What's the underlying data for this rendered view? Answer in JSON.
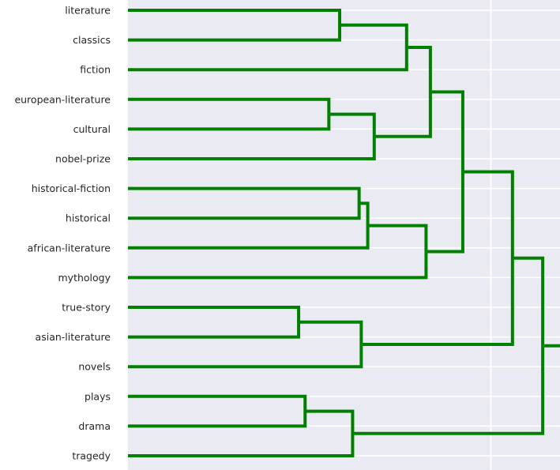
{
  "chart_data": {
    "type": "dendrogram",
    "orientation": "right",
    "link_color": "#008000",
    "background_color": "#EAEAF2",
    "grid_color": "#FFFFFF",
    "grid": true,
    "leaves": [
      "literature",
      "classics",
      "fiction",
      "european-literature",
      "cultural",
      "nobel-prize",
      "historical-fiction",
      "historical",
      "african-literature",
      "mythology",
      "true-story",
      "asian-literature",
      "novels",
      "plays",
      "drama",
      "tragedy"
    ],
    "xlim": [
      0,
      1.0
    ],
    "x_gridlines": [
      0.84
    ],
    "merges": [
      {
        "left": 0,
        "right": 1,
        "height": 0.49
      },
      {
        "left": 16,
        "right": 2,
        "height": 0.645
      },
      {
        "left": 3,
        "right": 4,
        "height": 0.465
      },
      {
        "left": 18,
        "right": 5,
        "height": 0.57
      },
      {
        "left": 17,
        "right": 19,
        "height": 0.7
      },
      {
        "left": 6,
        "right": 7,
        "height": 0.535
      },
      {
        "left": 21,
        "right": 8,
        "height": 0.555
      },
      {
        "left": 22,
        "right": 9,
        "height": 0.69
      },
      {
        "left": 20,
        "right": 23,
        "height": 0.775
      },
      {
        "left": 10,
        "right": 11,
        "height": 0.395
      },
      {
        "left": 25,
        "right": 12,
        "height": 0.54
      },
      {
        "left": 24,
        "right": 26,
        "height": 0.89
      },
      {
        "left": 13,
        "right": 14,
        "height": 0.41
      },
      {
        "left": 28,
        "right": 15,
        "height": 0.52
      },
      {
        "left": 27,
        "right": 29,
        "height": 0.96
      },
      {
        "left": 30,
        "right": -1,
        "height": 1.0
      }
    ]
  }
}
